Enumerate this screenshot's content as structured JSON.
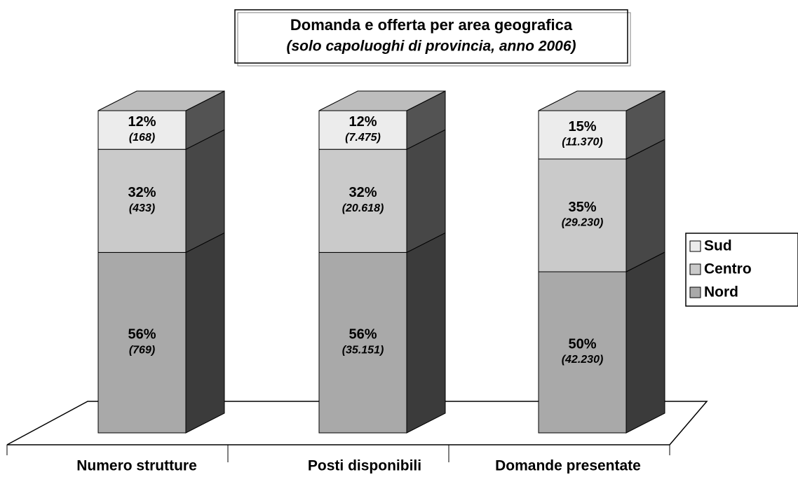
{
  "chart_data": {
    "type": "bar3d_stacked",
    "title": "Domanda e offerta per area geografica",
    "subtitle": "(solo capoluoghi di provincia, anno 2006)",
    "categories": [
      "Numero strutture",
      "Posti disponibili",
      "Domande presentate"
    ],
    "series": [
      {
        "name": "Nord",
        "color": "#a9a9a9",
        "values": [
          56,
          56,
          50
        ],
        "value_labels": [
          "56%",
          "56%",
          "50%"
        ],
        "counts": [
          769,
          35151,
          42230
        ],
        "count_labels": [
          "(769)",
          "(35.151)",
          "(42.230)"
        ]
      },
      {
        "name": "Centro",
        "color": "#cacaca",
        "values": [
          32,
          32,
          35
        ],
        "value_labels": [
          "32%",
          "32%",
          "35%"
        ],
        "counts": [
          433,
          20618,
          29230
        ],
        "count_labels": [
          "(433)",
          "(20.618)",
          "(29.230)"
        ]
      },
      {
        "name": "Sud",
        "color": "#ececec",
        "values": [
          12,
          12,
          15
        ],
        "value_labels": [
          "12%",
          "12%",
          "15%"
        ],
        "counts": [
          168,
          7475,
          11370
        ],
        "count_labels": [
          "(168)",
          "(7.475)",
          "(11.370)"
        ]
      }
    ],
    "legend": "right"
  }
}
